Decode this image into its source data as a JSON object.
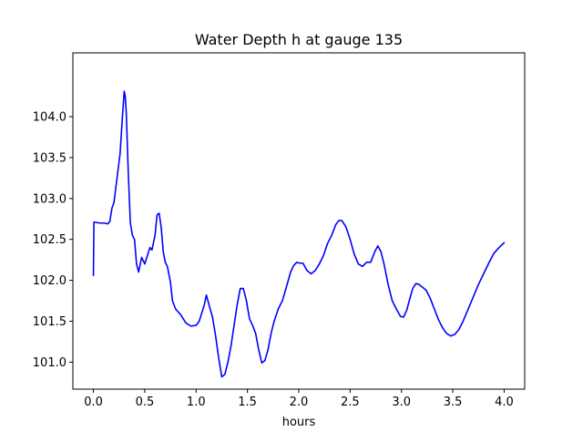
{
  "chart_data": {
    "type": "line",
    "title": "Water Depth h at gauge 135",
    "xlabel": "hours",
    "ylabel": "",
    "xlim": [
      -0.2,
      4.2
    ],
    "ylim": [
      100.67,
      104.78
    ],
    "xticks": [
      0.0,
      0.5,
      1.0,
      1.5,
      2.0,
      2.5,
      3.0,
      3.5,
      4.0
    ],
    "xtick_labels": [
      "0.0",
      "0.5",
      "1.0",
      "1.5",
      "2.0",
      "2.5",
      "3.0",
      "3.5",
      "4.0"
    ],
    "yticks": [
      101.0,
      101.5,
      102.0,
      102.5,
      103.0,
      103.5,
      104.0
    ],
    "ytick_labels": [
      "101.0",
      "101.5",
      "102.0",
      "102.5",
      "103.0",
      "103.5",
      "104.0"
    ],
    "grid": false,
    "legend": "none",
    "series": [
      {
        "color": "#0000ff",
        "x": [
          0.0,
          0.005,
          0.02,
          0.06,
          0.1,
          0.14,
          0.16,
          0.18,
          0.2,
          0.23,
          0.26,
          0.28,
          0.3,
          0.31,
          0.32,
          0.34,
          0.36,
          0.38,
          0.4,
          0.42,
          0.44,
          0.47,
          0.5,
          0.53,
          0.55,
          0.57,
          0.6,
          0.62,
          0.64,
          0.66,
          0.68,
          0.7,
          0.72,
          0.75,
          0.77,
          0.8,
          0.85,
          0.9,
          0.95,
          1.0,
          1.03,
          1.06,
          1.08,
          1.1,
          1.13,
          1.16,
          1.19,
          1.22,
          1.25,
          1.28,
          1.31,
          1.34,
          1.37,
          1.4,
          1.43,
          1.46,
          1.49,
          1.52,
          1.55,
          1.58,
          1.61,
          1.64,
          1.67,
          1.7,
          1.73,
          1.76,
          1.8,
          1.84,
          1.88,
          1.92,
          1.95,
          1.98,
          2.01,
          2.04,
          2.08,
          2.12,
          2.16,
          2.2,
          2.24,
          2.28,
          2.32,
          2.36,
          2.39,
          2.42,
          2.46,
          2.5,
          2.54,
          2.58,
          2.62,
          2.66,
          2.7,
          2.74,
          2.77,
          2.8,
          2.83,
          2.87,
          2.91,
          2.95,
          2.99,
          3.02,
          3.05,
          3.08,
          3.11,
          3.14,
          3.17,
          3.2,
          3.24,
          3.28,
          3.32,
          3.36,
          3.4,
          3.44,
          3.48,
          3.52,
          3.56,
          3.6,
          3.65,
          3.7,
          3.75,
          3.8,
          3.85,
          3.9,
          3.95,
          4.0
        ],
        "y": [
          102.06,
          102.71,
          102.71,
          102.7,
          102.7,
          102.69,
          102.72,
          102.88,
          102.95,
          103.25,
          103.55,
          103.95,
          104.31,
          104.25,
          104.05,
          103.3,
          102.7,
          102.55,
          102.5,
          102.2,
          102.1,
          102.28,
          102.2,
          102.32,
          102.4,
          102.37,
          102.55,
          102.8,
          102.82,
          102.65,
          102.35,
          102.22,
          102.17,
          101.98,
          101.75,
          101.65,
          101.58,
          101.48,
          101.44,
          101.45,
          101.5,
          101.62,
          101.7,
          101.82,
          101.68,
          101.55,
          101.32,
          101.05,
          100.82,
          100.85,
          101.0,
          101.2,
          101.45,
          101.7,
          101.9,
          101.9,
          101.75,
          101.53,
          101.45,
          101.35,
          101.15,
          100.99,
          101.02,
          101.15,
          101.35,
          101.5,
          101.65,
          101.75,
          101.92,
          102.1,
          102.18,
          102.22,
          102.21,
          102.21,
          102.12,
          102.08,
          102.12,
          102.2,
          102.3,
          102.45,
          102.55,
          102.68,
          102.73,
          102.73,
          102.65,
          102.5,
          102.32,
          102.2,
          102.17,
          102.22,
          102.22,
          102.35,
          102.42,
          102.35,
          102.2,
          101.95,
          101.75,
          101.65,
          101.56,
          101.55,
          101.63,
          101.77,
          101.9,
          101.96,
          101.95,
          101.92,
          101.88,
          101.78,
          101.65,
          101.52,
          101.42,
          101.35,
          101.32,
          101.34,
          101.4,
          101.5,
          101.65,
          101.8,
          101.95,
          102.08,
          102.21,
          102.33,
          102.4,
          102.46
        ]
      }
    ]
  }
}
